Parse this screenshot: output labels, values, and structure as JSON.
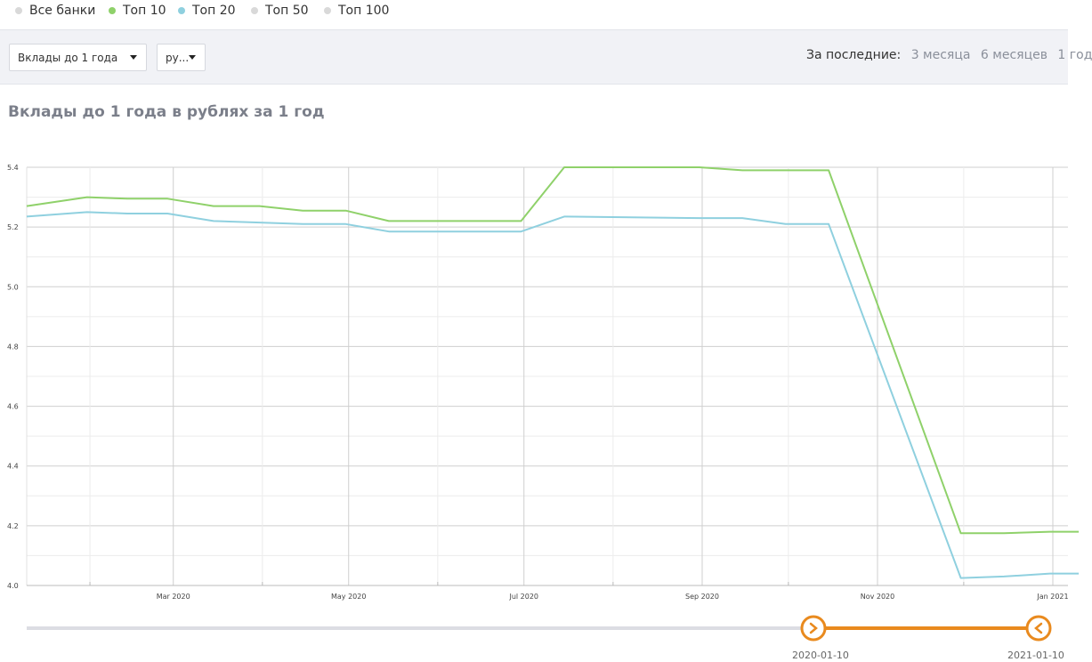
{
  "legend": [
    {
      "label": "Все банки",
      "color": "#d9d9d9"
    },
    {
      "label": "Топ 10",
      "color": "#8fd16a"
    },
    {
      "label": "Топ 20",
      "color": "#8fd0df"
    },
    {
      "label": "Топ 50",
      "color": "#d9d9d9"
    },
    {
      "label": "Топ 100",
      "color": "#d9d9d9"
    }
  ],
  "toolbar": {
    "deposit_select": "Вклады до 1 года",
    "currency_select": "ру...",
    "period_label": "За последние:",
    "periods": [
      "3 месяца",
      "6 месяцев",
      "1 год"
    ]
  },
  "chart_title": "Вклады до 1 года в рублях за 1 год",
  "chart_data": {
    "type": "line",
    "title": "Вклады до 1 года в рублях за 1 год",
    "xlabel": "",
    "ylabel": "",
    "ylim": [
      4.0,
      5.4
    ],
    "y_ticks": [
      "4.0",
      "4.2",
      "4.4",
      "4.6",
      "4.8",
      "5.0",
      "5.2",
      "5.4"
    ],
    "x_ticks": [
      {
        "date": "2020-03-01",
        "label": "Mar 2020"
      },
      {
        "date": "2020-05-01",
        "label": "May 2020"
      },
      {
        "date": "2020-07-01",
        "label": "Jul 2020"
      },
      {
        "date": "2020-09-01",
        "label": "Sep 2020"
      },
      {
        "date": "2020-11-01",
        "label": "Nov 2020"
      },
      {
        "date": "2021-01-01",
        "label": "Jan 2021"
      }
    ],
    "xlim": [
      "2020-01-10",
      "2021-01-10"
    ],
    "grid": true,
    "series": [
      {
        "name": "Топ 10",
        "color": "#8fd16a",
        "points": [
          [
            "2020-01-10",
            5.27
          ],
          [
            "2020-01-31",
            5.3
          ],
          [
            "2020-02-14",
            5.295
          ],
          [
            "2020-02-28",
            5.295
          ],
          [
            "2020-03-15",
            5.27
          ],
          [
            "2020-03-31",
            5.27
          ],
          [
            "2020-04-15",
            5.255
          ],
          [
            "2020-04-30",
            5.255
          ],
          [
            "2020-05-15",
            5.22
          ],
          [
            "2020-06-30",
            5.22
          ],
          [
            "2020-07-15",
            5.4
          ],
          [
            "2020-08-31",
            5.4
          ],
          [
            "2020-09-15",
            5.39
          ],
          [
            "2020-09-30",
            5.39
          ],
          [
            "2020-10-15",
            5.39
          ],
          [
            "2020-11-30",
            4.175
          ],
          [
            "2020-12-15",
            4.175
          ],
          [
            "2020-12-31",
            4.18
          ],
          [
            "2021-01-10",
            4.18
          ]
        ]
      },
      {
        "name": "Топ 20",
        "color": "#8fd0df",
        "points": [
          [
            "2020-01-10",
            5.235
          ],
          [
            "2020-01-31",
            5.25
          ],
          [
            "2020-02-14",
            5.245
          ],
          [
            "2020-02-28",
            5.245
          ],
          [
            "2020-03-15",
            5.22
          ],
          [
            "2020-03-31",
            5.215
          ],
          [
            "2020-04-15",
            5.21
          ],
          [
            "2020-04-30",
            5.21
          ],
          [
            "2020-05-15",
            5.185
          ],
          [
            "2020-06-30",
            5.185
          ],
          [
            "2020-07-15",
            5.235
          ],
          [
            "2020-08-31",
            5.23
          ],
          [
            "2020-09-15",
            5.23
          ],
          [
            "2020-09-30",
            5.21
          ],
          [
            "2020-10-15",
            5.21
          ],
          [
            "2020-11-30",
            4.025
          ],
          [
            "2020-12-15",
            4.03
          ],
          [
            "2020-12-31",
            4.04
          ],
          [
            "2021-01-10",
            4.04
          ]
        ]
      }
    ]
  },
  "range": {
    "start_label": "2020-01-10",
    "end_label": "2021-01-10",
    "accent": "#e98a1e"
  }
}
